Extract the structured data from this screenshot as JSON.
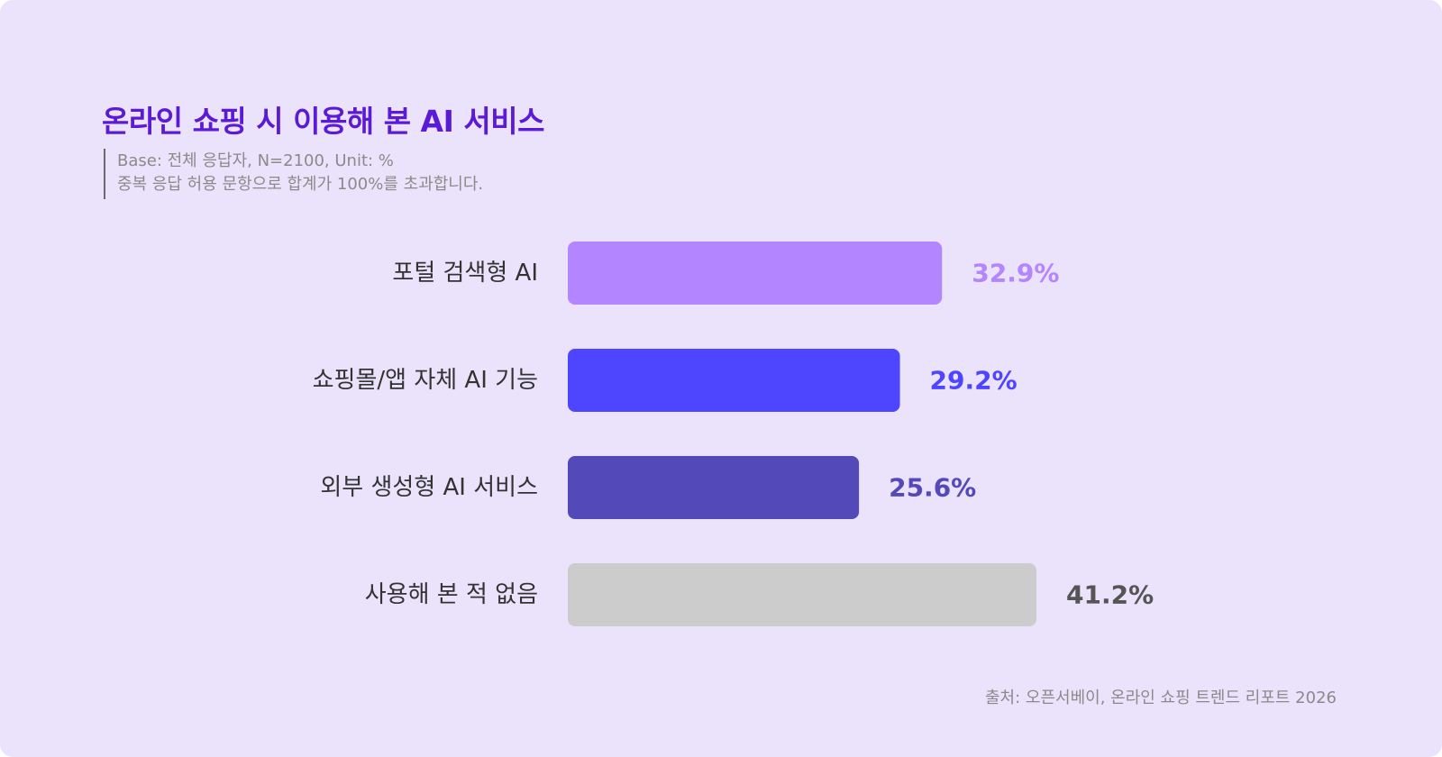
{
  "chart_data": {
    "type": "bar",
    "orientation": "horizontal",
    "title": "온라인 쇼핑 시 이용해 본 AI 서비스",
    "notes": [
      "Base: 전체 응답자, N=2100, Unit: %",
      "중복 응답 허용 문항으로 합계가 100%를 초과합니다."
    ],
    "categories": [
      "포털 검색형 AI",
      "쇼핑몰/앱 자체 AI 기능",
      "외부 생성형 AI 서비스",
      "사용해 본 적 없음"
    ],
    "values": [
      32.9,
      29.2,
      25.6,
      41.2
    ],
    "value_labels": [
      "32.9%",
      "29.2%",
      "25.6%",
      "41.2%"
    ],
    "unit": "%",
    "bar_colors": [
      "#b385ff",
      "#4d45ff",
      "#5449b8",
      "#cccccc"
    ],
    "label_colors": [
      "#b385ff",
      "#4d45ff",
      "#5449b8",
      "#555555"
    ],
    "xlim": [
      0,
      41.2
    ],
    "grid": false,
    "legend": "none",
    "source": "출처: 오픈서베이, 온라인 쇼핑 트렌드 리포트 2026"
  }
}
